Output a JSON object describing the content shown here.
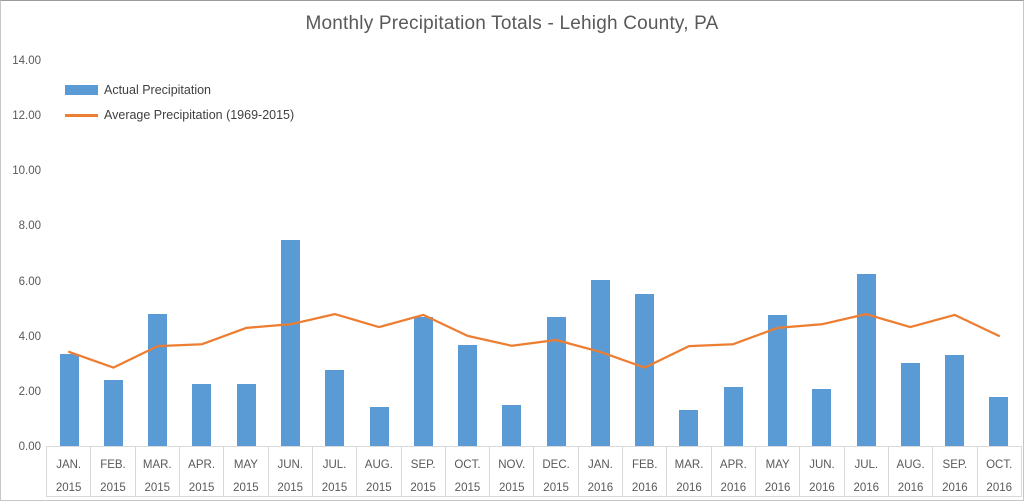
{
  "title": "Monthly Precipitation Totals - Lehigh County, PA",
  "legend": {
    "items": [
      {
        "label": "Actual Precipitation"
      },
      {
        "label": "Average Precipitation (1969-2015)"
      }
    ]
  },
  "colors": {
    "bar": "#5B9BD5",
    "line": "#ED7D31",
    "text": "#595959",
    "axis_border": "#D9D9D9"
  },
  "chart_data": {
    "type": "bar",
    "title": "Monthly Precipitation Totals - Lehigh County, PA",
    "xlabel": "",
    "ylabel": "",
    "ylim": [
      0,
      14
    ],
    "ytick_step": 2,
    "ytick_labels": [
      "0.00",
      "2.00",
      "4.00",
      "6.00",
      "8.00",
      "10.00",
      "12.00",
      "14.00"
    ],
    "grid": false,
    "legend_position": "top-left-inside",
    "categories": [
      {
        "month": "JAN.",
        "year": "2015"
      },
      {
        "month": "FEB.",
        "year": "2015"
      },
      {
        "month": "MAR.",
        "year": "2015"
      },
      {
        "month": "APR.",
        "year": "2015"
      },
      {
        "month": "MAY",
        "year": "2015"
      },
      {
        "month": "JUN.",
        "year": "2015"
      },
      {
        "month": "JUL.",
        "year": "2015"
      },
      {
        "month": "AUG.",
        "year": "2015"
      },
      {
        "month": "SEP.",
        "year": "2015"
      },
      {
        "month": "OCT.",
        "year": "2015"
      },
      {
        "month": "NOV.",
        "year": "2015"
      },
      {
        "month": "DEC.",
        "year": "2015"
      },
      {
        "month": "JAN.",
        "year": "2016"
      },
      {
        "month": "FEB.",
        "year": "2016"
      },
      {
        "month": "MAR.",
        "year": "2016"
      },
      {
        "month": "APR.",
        "year": "2016"
      },
      {
        "month": "MAY",
        "year": "2016"
      },
      {
        "month": "JUN.",
        "year": "2016"
      },
      {
        "month": "JUL.",
        "year": "2016"
      },
      {
        "month": "AUG.",
        "year": "2016"
      },
      {
        "month": "SEP.",
        "year": "2016"
      },
      {
        "month": "OCT.",
        "year": "2016"
      }
    ],
    "series": [
      {
        "name": "Actual Precipitation",
        "type": "bar",
        "color": "#5B9BD5",
        "values": [
          3.38,
          2.42,
          4.84,
          2.27,
          2.3,
          7.52,
          2.8,
          1.45,
          4.7,
          3.7,
          1.53,
          4.73,
          6.07,
          5.54,
          1.36,
          2.16,
          4.79,
          2.12,
          6.27,
          3.05,
          3.32,
          1.82
        ]
      },
      {
        "name": "Average Precipitation (1969-2015)",
        "type": "line",
        "color": "#ED7D31",
        "values": [
          3.45,
          2.88,
          3.66,
          3.73,
          4.32,
          4.45,
          4.82,
          4.35,
          4.79,
          4.03,
          3.67,
          3.88,
          3.45,
          2.88,
          3.66,
          3.73,
          4.32,
          4.45,
          4.82,
          4.35,
          4.79,
          4.03
        ]
      }
    ]
  }
}
